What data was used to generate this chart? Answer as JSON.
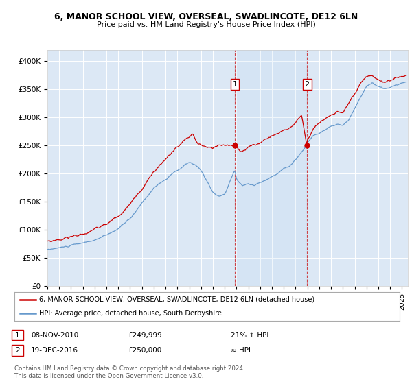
{
  "title1": "6, MANOR SCHOOL VIEW, OVERSEAL, SWADLINCOTE, DE12 6LN",
  "title2": "Price paid vs. HM Land Registry's House Price Index (HPI)",
  "ylim": [
    0,
    420000
  ],
  "yticks": [
    0,
    50000,
    100000,
    150000,
    200000,
    250000,
    300000,
    350000,
    400000
  ],
  "ytick_labels": [
    "£0",
    "£50K",
    "£100K",
    "£150K",
    "£200K",
    "£250K",
    "£300K",
    "£350K",
    "£400K"
  ],
  "background_color": "#ffffff",
  "plot_bg_color": "#dce8f5",
  "grid_color": "#ffffff",
  "hpi_color": "#6699cc",
  "price_color": "#cc0000",
  "sale1_date_num": 2010.86,
  "sale1_price": 249999,
  "sale2_date_num": 2016.97,
  "sale2_price": 250000,
  "sale1_date_str": "08-NOV-2010",
  "sale1_price_str": "£249,999",
  "sale1_change": "21% ↑ HPI",
  "sale2_date_str": "19-DEC-2016",
  "sale2_price_str": "£250,000",
  "sale2_change": "≈ HPI",
  "legend_line1": "6, MANOR SCHOOL VIEW, OVERSEAL, SWADLINCOTE, DE12 6LN (detached house)",
  "legend_line2": "HPI: Average price, detached house, South Derbyshire",
  "footnote": "Contains HM Land Registry data © Crown copyright and database right 2024.\nThis data is licensed under the Open Government Licence v3.0.",
  "xmin": 1995,
  "xmax": 2025.5,
  "xticks": [
    1995,
    1996,
    1997,
    1998,
    1999,
    2000,
    2001,
    2002,
    2003,
    2004,
    2005,
    2006,
    2007,
    2008,
    2009,
    2010,
    2011,
    2012,
    2013,
    2014,
    2015,
    2016,
    2017,
    2018,
    2019,
    2020,
    2021,
    2022,
    2023,
    2024,
    2025
  ]
}
